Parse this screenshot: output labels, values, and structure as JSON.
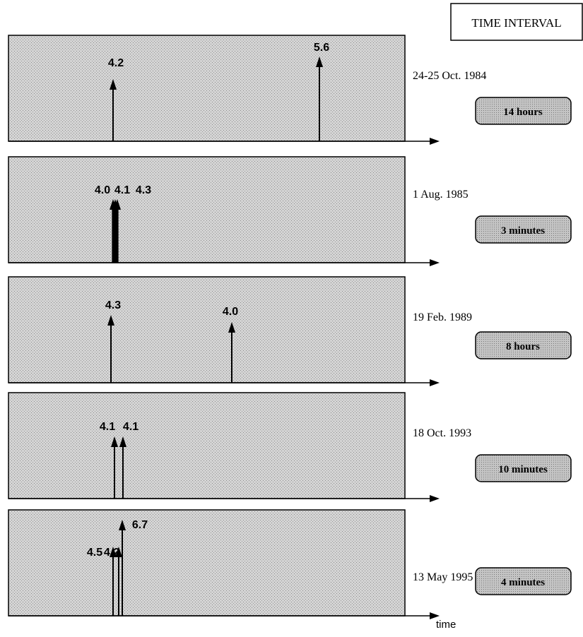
{
  "legend": {
    "title": "TIME INTERVAL"
  },
  "axis": {
    "label": "time"
  },
  "colors": {
    "panel_fill": "#c9c9c9",
    "interval_fill": "#bdbdbd",
    "ink": "#000000"
  },
  "panels": [
    {
      "date": "24-25 Oct. 1984",
      "interval": "14  hours",
      "events": [
        {
          "label": "4.2"
        },
        {
          "label": "5.6"
        }
      ]
    },
    {
      "date": "1 Aug. 1985",
      "interval": "3 minutes",
      "events": [
        {
          "label": "4.0"
        },
        {
          "label": "4.1"
        },
        {
          "label": "4.3"
        }
      ]
    },
    {
      "date": "19 Feb. 1989",
      "interval": "8 hours",
      "events": [
        {
          "label": "4.3"
        },
        {
          "label": "4.0"
        }
      ]
    },
    {
      "date": "18 Oct. 1993",
      "interval": "10 minutes",
      "events": [
        {
          "label": "4.1"
        },
        {
          "label": "4.1"
        }
      ]
    },
    {
      "date": "13 May 1995",
      "interval": "4 minutes",
      "events": [
        {
          "label": "4.5"
        },
        {
          "label": "4.2"
        },
        {
          "label": "6.7"
        }
      ]
    }
  ]
}
